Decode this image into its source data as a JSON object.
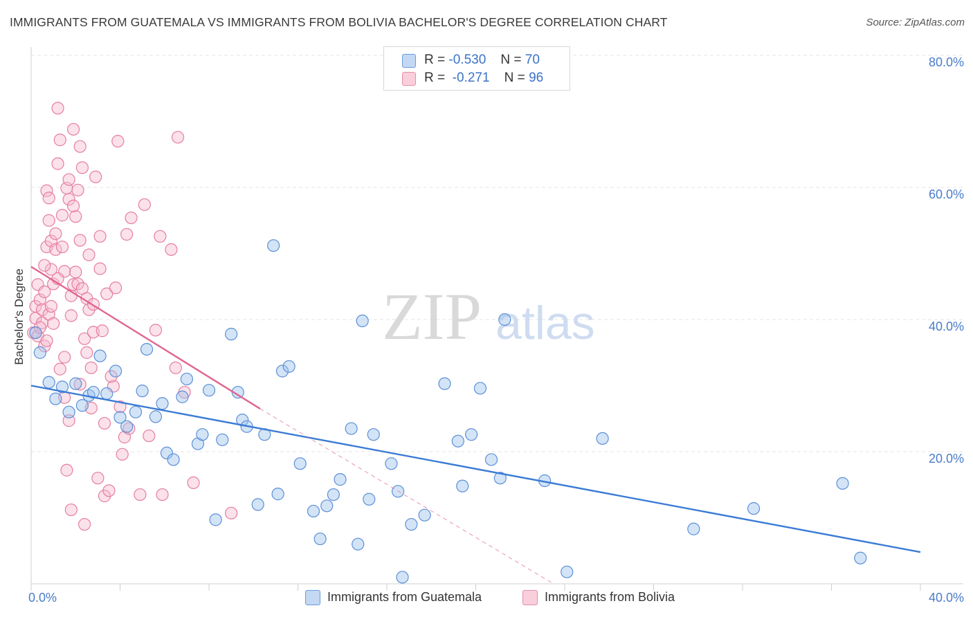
{
  "title": "IMMIGRANTS FROM GUATEMALA VS IMMIGRANTS FROM BOLIVIA BACHELOR'S DEGREE CORRELATION CHART",
  "source": "Source: ZipAtlas.com",
  "watermark": {
    "part1": "ZIP",
    "part2": "atlas"
  },
  "legend": {
    "rows": [
      {
        "r_label": "R =",
        "r_value": "-0.530",
        "n_label": "N =",
        "n_value": "70",
        "color": "#9dc3ee",
        "stroke": "#5b8fd6"
      },
      {
        "r_label": "R =",
        "r_value": "-0.271",
        "n_label": "N =",
        "n_value": "96",
        "color": "#f7bcd0",
        "stroke": "#e57ea0"
      }
    ]
  },
  "chart_data": {
    "type": "scatter",
    "title": "IMMIGRANTS FROM GUATEMALA VS IMMIGRANTS FROM BOLIVIA BACHELOR'S DEGREE CORRELATION CHART",
    "xlabel": "",
    "ylabel": "Bachelor's Degree",
    "xlim": [
      0,
      40
    ],
    "ylim": [
      0,
      80
    ],
    "x_ticks": [
      0,
      40
    ],
    "x_tick_labels": [
      "0.0%",
      "40.0%"
    ],
    "y_ticks": [
      20,
      40,
      60,
      80
    ],
    "y_tick_labels": [
      "20.0%",
      "40.0%",
      "60.0%",
      "80.0%"
    ],
    "grid": true,
    "legend_position": "top-center",
    "series": [
      {
        "name": "Immigrants from Guatemala",
        "color": "#9dc3ee",
        "stroke": "#5b8fd6",
        "trend": {
          "x": [
            0,
            40
          ],
          "y": [
            30.0,
            4.8
          ],
          "color": "#3a7bd5"
        },
        "points": [
          [
            0.2,
            38.0
          ],
          [
            0.4,
            35.0
          ],
          [
            0.8,
            30.5
          ],
          [
            1.1,
            28.0
          ],
          [
            1.4,
            29.8
          ],
          [
            1.7,
            26.0
          ],
          [
            2.0,
            30.3
          ],
          [
            2.3,
            27.0
          ],
          [
            2.6,
            28.5
          ],
          [
            2.8,
            29.0
          ],
          [
            3.1,
            34.5
          ],
          [
            3.4,
            28.8
          ],
          [
            3.8,
            32.2
          ],
          [
            4.0,
            25.2
          ],
          [
            4.3,
            23.8
          ],
          [
            4.7,
            26.0
          ],
          [
            5.0,
            29.2
          ],
          [
            5.2,
            35.5
          ],
          [
            5.6,
            25.3
          ],
          [
            5.9,
            27.3
          ],
          [
            6.1,
            19.8
          ],
          [
            6.4,
            18.8
          ],
          [
            6.8,
            28.3
          ],
          [
            7.0,
            31.0
          ],
          [
            7.5,
            21.2
          ],
          [
            7.7,
            22.6
          ],
          [
            8.0,
            29.3
          ],
          [
            8.3,
            9.7
          ],
          [
            8.6,
            21.8
          ],
          [
            9.0,
            37.8
          ],
          [
            9.3,
            29.0
          ],
          [
            9.5,
            24.8
          ],
          [
            9.7,
            23.8
          ],
          [
            10.2,
            12.0
          ],
          [
            10.5,
            22.6
          ],
          [
            10.9,
            51.2
          ],
          [
            11.1,
            13.6
          ],
          [
            11.3,
            32.2
          ],
          [
            11.6,
            32.9
          ],
          [
            12.1,
            18.2
          ],
          [
            12.7,
            11.0
          ],
          [
            13.0,
            6.8
          ],
          [
            13.3,
            11.8
          ],
          [
            13.6,
            13.5
          ],
          [
            13.9,
            15.8
          ],
          [
            14.4,
            23.5
          ],
          [
            14.7,
            6.0
          ],
          [
            14.9,
            39.8
          ],
          [
            15.2,
            12.8
          ],
          [
            15.4,
            22.6
          ],
          [
            16.2,
            18.2
          ],
          [
            16.5,
            14.0
          ],
          [
            16.7,
            1.0
          ],
          [
            17.1,
            9.0
          ],
          [
            17.7,
            10.4
          ],
          [
            18.6,
            30.3
          ],
          [
            19.2,
            21.6
          ],
          [
            19.4,
            14.8
          ],
          [
            19.8,
            22.6
          ],
          [
            20.2,
            29.6
          ],
          [
            20.7,
            18.8
          ],
          [
            21.1,
            16.0
          ],
          [
            21.3,
            40.0
          ],
          [
            23.1,
            15.6
          ],
          [
            24.1,
            1.8
          ],
          [
            25.7,
            22.0
          ],
          [
            29.8,
            8.3
          ],
          [
            32.5,
            11.4
          ],
          [
            36.5,
            15.2
          ],
          [
            37.3,
            3.9
          ]
        ]
      },
      {
        "name": "Immigrants from Bolivia",
        "color": "#f7bcd0",
        "stroke": "#e57ea0",
        "trend": {
          "x": [
            0,
            10.3
          ],
          "y": [
            48.0,
            26.5
          ],
          "dashed_to": [
            23.5,
            0.0
          ],
          "color": "#e0658f"
        },
        "points": [
          [
            0.1,
            38.0
          ],
          [
            0.2,
            40.2
          ],
          [
            0.2,
            42.0
          ],
          [
            0.3,
            37.5
          ],
          [
            0.3,
            45.3
          ],
          [
            0.4,
            43.0
          ],
          [
            0.5,
            39.5
          ],
          [
            0.5,
            41.5
          ],
          [
            0.6,
            36.0
          ],
          [
            0.6,
            44.2
          ],
          [
            0.7,
            51.0
          ],
          [
            0.7,
            59.5
          ],
          [
            0.8,
            58.4
          ],
          [
            0.8,
            40.8
          ],
          [
            0.9,
            51.9
          ],
          [
            0.9,
            47.6
          ],
          [
            1.0,
            45.4
          ],
          [
            1.1,
            50.6
          ],
          [
            1.1,
            53.0
          ],
          [
            1.2,
            72.0
          ],
          [
            1.2,
            63.6
          ],
          [
            1.3,
            67.2
          ],
          [
            1.4,
            55.8
          ],
          [
            1.4,
            51.0
          ],
          [
            1.5,
            47.3
          ],
          [
            1.5,
            34.3
          ],
          [
            1.6,
            59.9
          ],
          [
            1.7,
            61.2
          ],
          [
            1.7,
            58.2
          ],
          [
            1.8,
            43.6
          ],
          [
            1.8,
            40.6
          ],
          [
            1.9,
            68.8
          ],
          [
            1.9,
            45.3
          ],
          [
            2.0,
            55.6
          ],
          [
            2.0,
            47.2
          ],
          [
            2.1,
            59.6
          ],
          [
            2.1,
            45.4
          ],
          [
            2.2,
            66.2
          ],
          [
            2.2,
            52.0
          ],
          [
            2.3,
            63.0
          ],
          [
            2.3,
            44.7
          ],
          [
            2.4,
            37.1
          ],
          [
            2.5,
            43.2
          ],
          [
            2.6,
            41.5
          ],
          [
            2.6,
            49.8
          ],
          [
            2.7,
            32.7
          ],
          [
            2.8,
            38.1
          ],
          [
            2.8,
            42.3
          ],
          [
            2.9,
            61.6
          ],
          [
            3.0,
            16.0
          ],
          [
            3.1,
            47.7
          ],
          [
            3.1,
            52.6
          ],
          [
            3.2,
            38.3
          ],
          [
            3.3,
            24.3
          ],
          [
            3.3,
            13.3
          ],
          [
            3.4,
            43.9
          ],
          [
            3.5,
            14.1
          ],
          [
            3.7,
            29.9
          ],
          [
            3.9,
            67.0
          ],
          [
            4.1,
            19.6
          ],
          [
            4.2,
            22.2
          ],
          [
            4.3,
            52.9
          ],
          [
            4.4,
            23.5
          ],
          [
            4.5,
            55.4
          ],
          [
            4.9,
            13.5
          ],
          [
            5.1,
            57.4
          ],
          [
            5.6,
            38.4
          ],
          [
            5.8,
            52.6
          ],
          [
            5.9,
            13.5
          ],
          [
            6.3,
            50.6
          ],
          [
            6.5,
            32.7
          ],
          [
            6.6,
            67.6
          ],
          [
            6.9,
            29.0
          ],
          [
            7.3,
            15.3
          ],
          [
            9.0,
            10.7
          ],
          [
            1.3,
            32.5
          ],
          [
            1.6,
            17.2
          ],
          [
            1.8,
            11.2
          ],
          [
            2.4,
            9.0
          ],
          [
            1.7,
            24.7
          ],
          [
            0.4,
            38.8
          ],
          [
            0.9,
            42.0
          ],
          [
            1.5,
            28.2
          ],
          [
            2.5,
            35.0
          ],
          [
            0.7,
            36.8
          ],
          [
            1.0,
            39.4
          ],
          [
            0.6,
            48.2
          ],
          [
            1.2,
            46.2
          ],
          [
            2.2,
            30.2
          ],
          [
            3.6,
            31.4
          ],
          [
            0.8,
            55.0
          ],
          [
            1.9,
            57.2
          ],
          [
            4.0,
            26.8
          ],
          [
            5.3,
            22.4
          ],
          [
            2.7,
            26.6
          ],
          [
            3.8,
            44.8
          ]
        ]
      }
    ]
  },
  "bottom_legend": [
    {
      "label": "Immigrants from Guatemala",
      "color": "#c3d8f3",
      "stroke": "#6a9ad9"
    },
    {
      "label": "Immigrants from Bolivia",
      "color": "#f9cfdc",
      "stroke": "#e58daa"
    }
  ]
}
